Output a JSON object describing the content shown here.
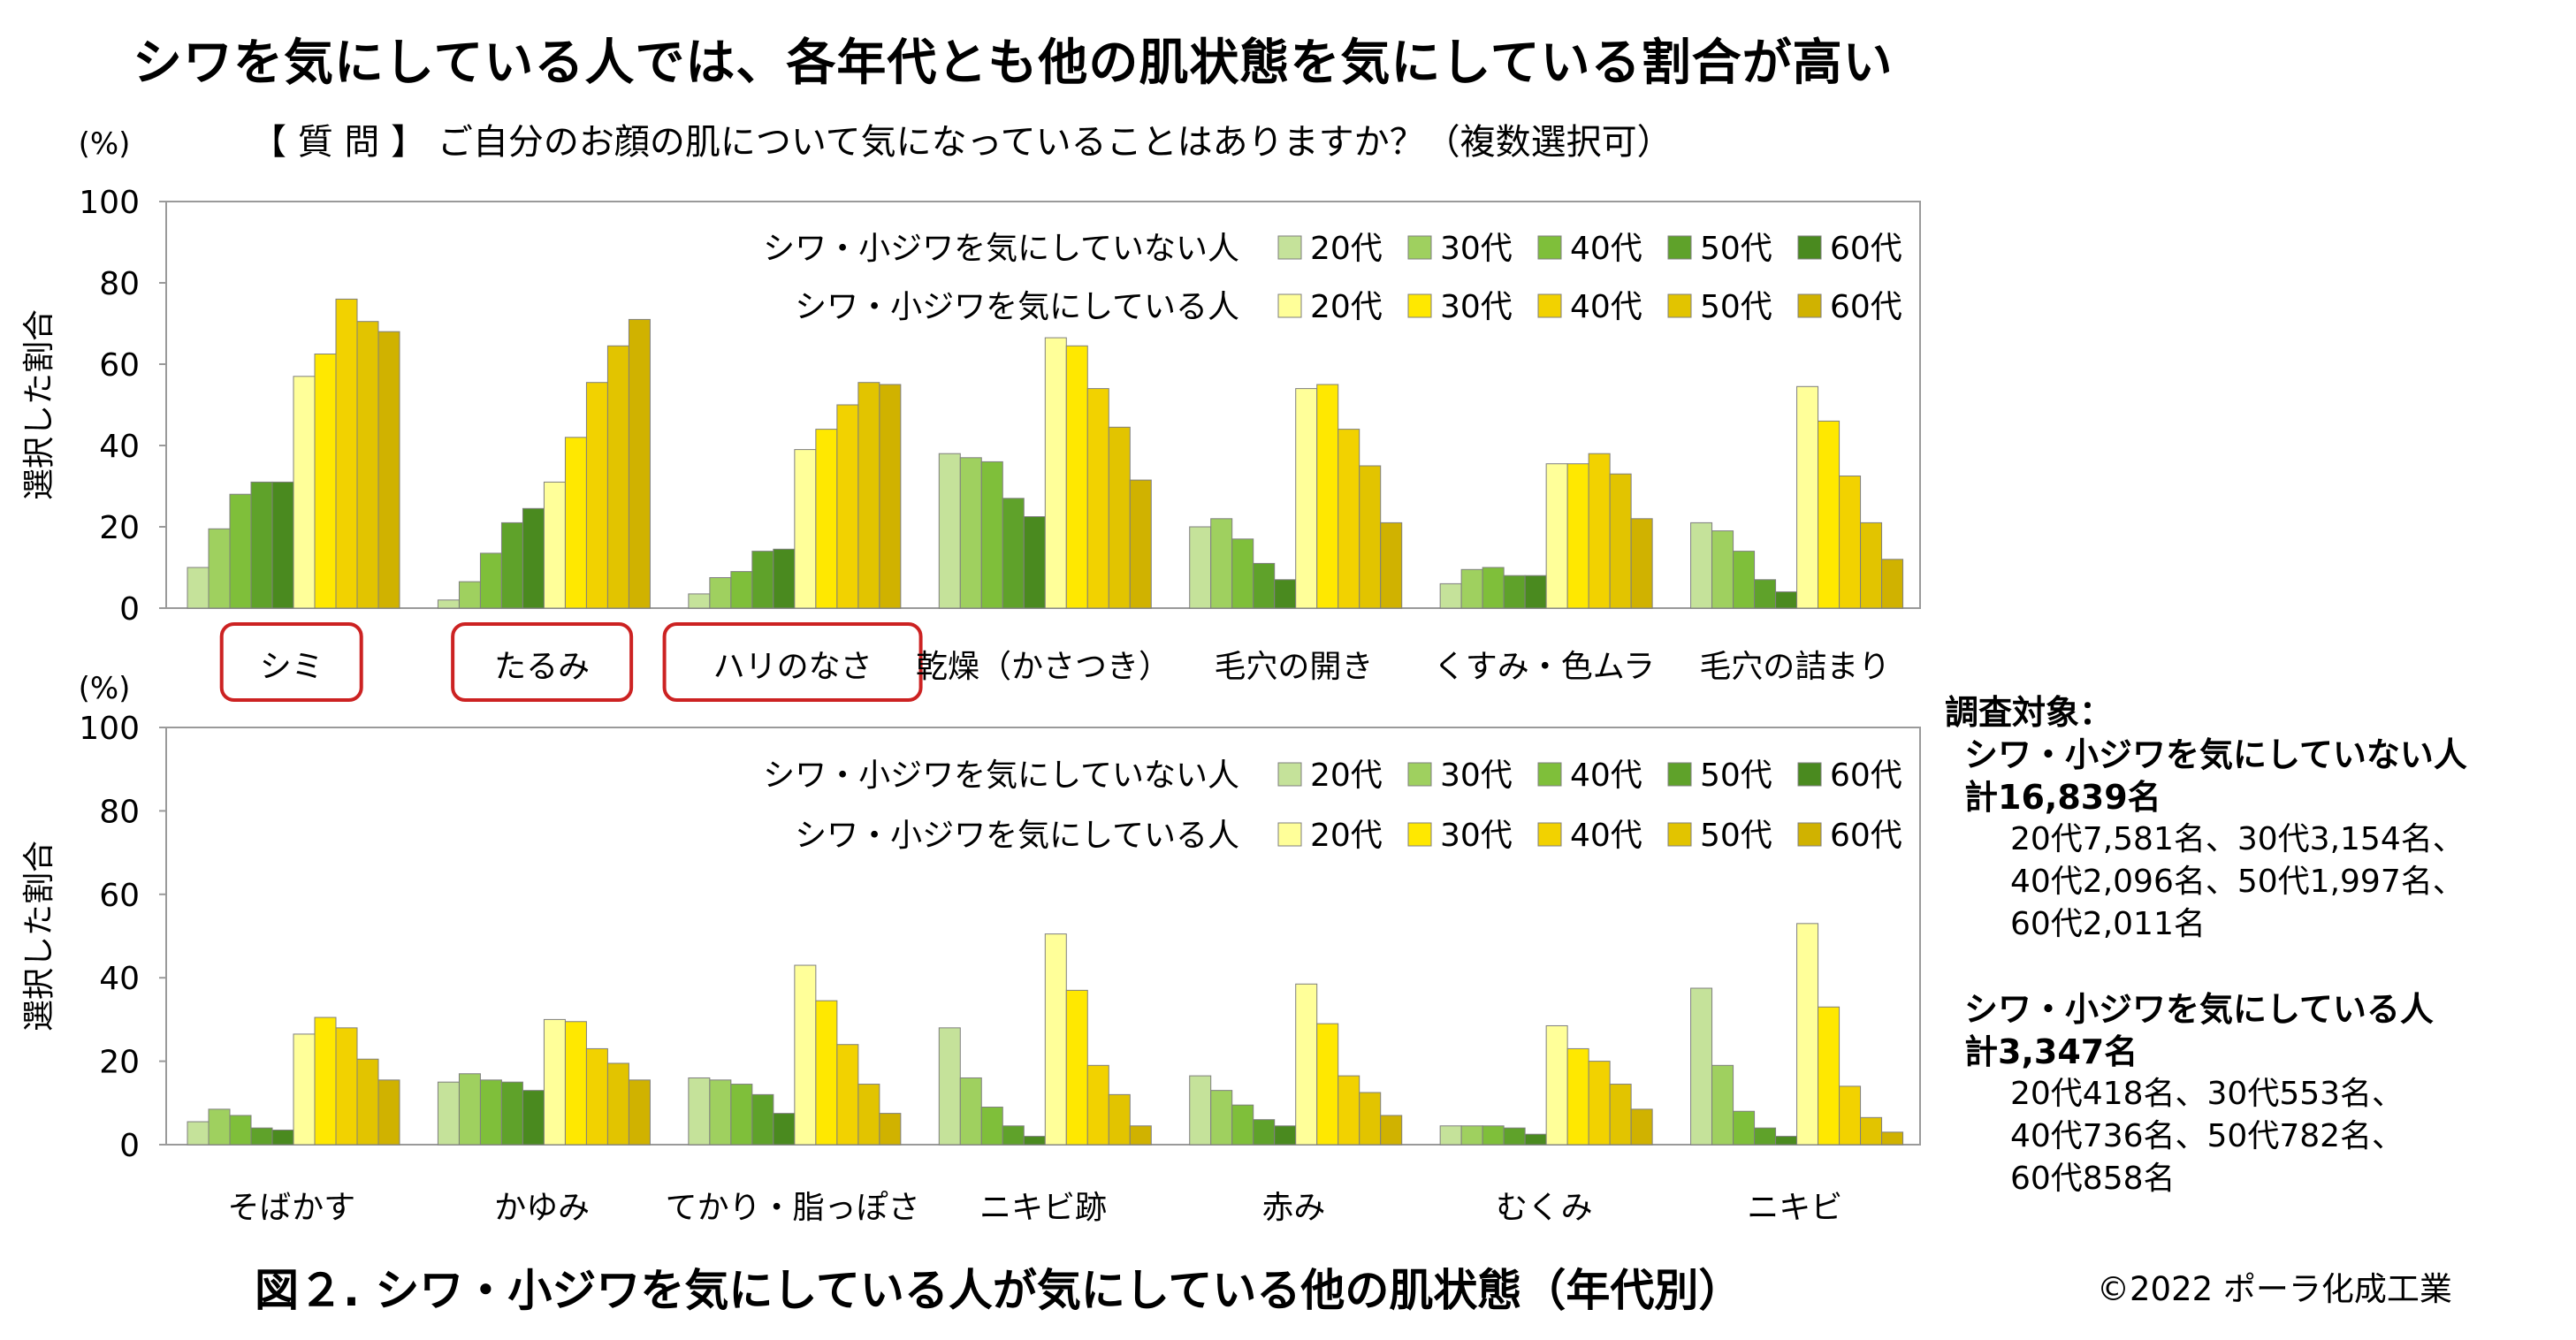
{
  "title": "シワを気にしている人では、各年代とも他の肌状態を気にしている割合が高い",
  "question": "【 質 問 】 ご自分のお顔の肌について気になっていることはありますか？（複数選択可）",
  "figure_caption": "図２. シワ・小ジワを気にしている人が気にしている他の肌状態（年代別）",
  "copyright": "©2022 ポーラ化成工業",
  "survey": {
    "heading": "調査対象：",
    "group1_title": "シワ・小ジワを気にしていない人",
    "group1_total": "計16,839名",
    "group1_lines": [
      "20代7,581名、30代3,154名、",
      "40代2,096名、50代1,997名、",
      "60代2,011名"
    ],
    "group2_title": "シワ・小ジワを気にしている人",
    "group2_total": "計3,347名",
    "group2_lines": [
      "20代418名、30代553名、",
      "40代736名、50代782名、",
      "60代858名"
    ]
  },
  "colors": {
    "not_concerned": [
      "#c5e29a",
      "#9fd05f",
      "#7fbf3a",
      "#5fa22a",
      "#4a8a1f"
    ],
    "concerned": [
      "#ffff99",
      "#ffe800",
      "#f2d200",
      "#e2c400",
      "#d0b200"
    ],
    "highlight_border": "#cc2222"
  },
  "chart_data": [
    {
      "type": "bar",
      "ylabel": "選択した割合",
      "unit_label": "(%)",
      "ylim": [
        0,
        100
      ],
      "yticks": [
        0,
        20,
        40,
        60,
        80,
        100
      ],
      "legend_position": "top-right",
      "legend_rows": [
        "シワ・小ジワを気にしていない人",
        "シワ・小ジワを気にしている人"
      ],
      "age_labels": [
        "20代",
        "30代",
        "40代",
        "50代",
        "60代"
      ],
      "categories": [
        "シミ",
        "たるみ",
        "ハリのなさ",
        "乾燥（かさつき）",
        "毛穴の開き",
        "くすみ・色ムラ",
        "毛穴の詰まり"
      ],
      "highlighted": [
        "シミ",
        "たるみ",
        "ハリのなさ"
      ],
      "series": [
        {
          "name": "シワ・小ジワを気にしていない人 20代",
          "values": [
            10,
            2,
            3.5,
            38,
            20,
            6,
            21
          ]
        },
        {
          "name": "シワ・小ジワを気にしていない人 30代",
          "values": [
            19.5,
            6.5,
            7.5,
            37,
            22,
            9.5,
            19
          ]
        },
        {
          "name": "シワ・小ジワを気にしていない人 40代",
          "values": [
            28,
            13.5,
            9,
            36,
            17,
            10,
            14
          ]
        },
        {
          "name": "シワ・小ジワを気にしていない人 50代",
          "values": [
            31,
            21,
            14,
            27,
            11,
            8,
            7
          ]
        },
        {
          "name": "シワ・小ジワを気にしていない人 60代",
          "values": [
            31,
            24.5,
            14.5,
            22.5,
            7,
            8,
            4
          ]
        },
        {
          "name": "シワ・小ジワを気にしている人 20代",
          "values": [
            57,
            31,
            39,
            66.5,
            54,
            35.5,
            54.5
          ]
        },
        {
          "name": "シワ・小ジワを気にしている人 30代",
          "values": [
            62.5,
            42,
            44,
            64.5,
            55,
            35.5,
            46
          ]
        },
        {
          "name": "シワ・小ジワを気にしている人 40代",
          "values": [
            76,
            55.5,
            50,
            54,
            44,
            38,
            32.5
          ]
        },
        {
          "name": "シワ・小ジワを気にしている人 50代",
          "values": [
            70.5,
            64.5,
            55.5,
            44.5,
            35,
            33,
            21
          ]
        },
        {
          "name": "シワ・小ジワを気にしている人 60代",
          "values": [
            68,
            71,
            55,
            31.5,
            21,
            22,
            12
          ]
        }
      ]
    },
    {
      "type": "bar",
      "ylabel": "選択した割合",
      "unit_label": "(%)",
      "ylim": [
        0,
        100
      ],
      "yticks": [
        0,
        20,
        40,
        60,
        80,
        100
      ],
      "legend_position": "top-right",
      "legend_rows": [
        "シワ・小ジワを気にしていない人",
        "シワ・小ジワを気にしている人"
      ],
      "age_labels": [
        "20代",
        "30代",
        "40代",
        "50代",
        "60代"
      ],
      "categories": [
        "そばかす",
        "かゆみ",
        "てかり・脂っぽさ",
        "ニキビ跡",
        "赤み",
        "むくみ",
        "ニキビ"
      ],
      "highlighted": [],
      "series": [
        {
          "name": "シワ・小ジワを気にしていない人 20代",
          "values": [
            5.5,
            15,
            16,
            28,
            16.5,
            4.5,
            37.5
          ]
        },
        {
          "name": "シワ・小ジワを気にしていない人 30代",
          "values": [
            8.5,
            17,
            15.5,
            16,
            13,
            4.5,
            19
          ]
        },
        {
          "name": "シワ・小ジワを気にしていない人 40代",
          "values": [
            7,
            15.5,
            14.5,
            9,
            9.5,
            4.5,
            8
          ]
        },
        {
          "name": "シワ・小ジワを気にしていない人 50代",
          "values": [
            4,
            15,
            12,
            4.5,
            6,
            4,
            4
          ]
        },
        {
          "name": "シワ・小ジワを気にしていない人 60代",
          "values": [
            3.5,
            13,
            7.5,
            2,
            4.5,
            2.5,
            2
          ]
        },
        {
          "name": "シワ・小ジワを気にしている人 20代",
          "values": [
            26.5,
            30,
            43,
            50.5,
            38.5,
            28.5,
            53
          ]
        },
        {
          "name": "シワ・小ジワを気にしている人 30代",
          "values": [
            30.5,
            29.5,
            34.5,
            37,
            29,
            23,
            33
          ]
        },
        {
          "name": "シワ・小ジワを気にしている人 40代",
          "values": [
            28,
            23,
            24,
            19,
            16.5,
            20,
            14
          ]
        },
        {
          "name": "シワ・小ジワを気にしている人 50代",
          "values": [
            20.5,
            19.5,
            14.5,
            12,
            12.5,
            14.5,
            6.5
          ]
        },
        {
          "name": "シワ・小ジワを気にしている人 60代",
          "values": [
            15.5,
            15.5,
            7.5,
            4.5,
            7,
            8.5,
            3
          ]
        }
      ]
    }
  ]
}
